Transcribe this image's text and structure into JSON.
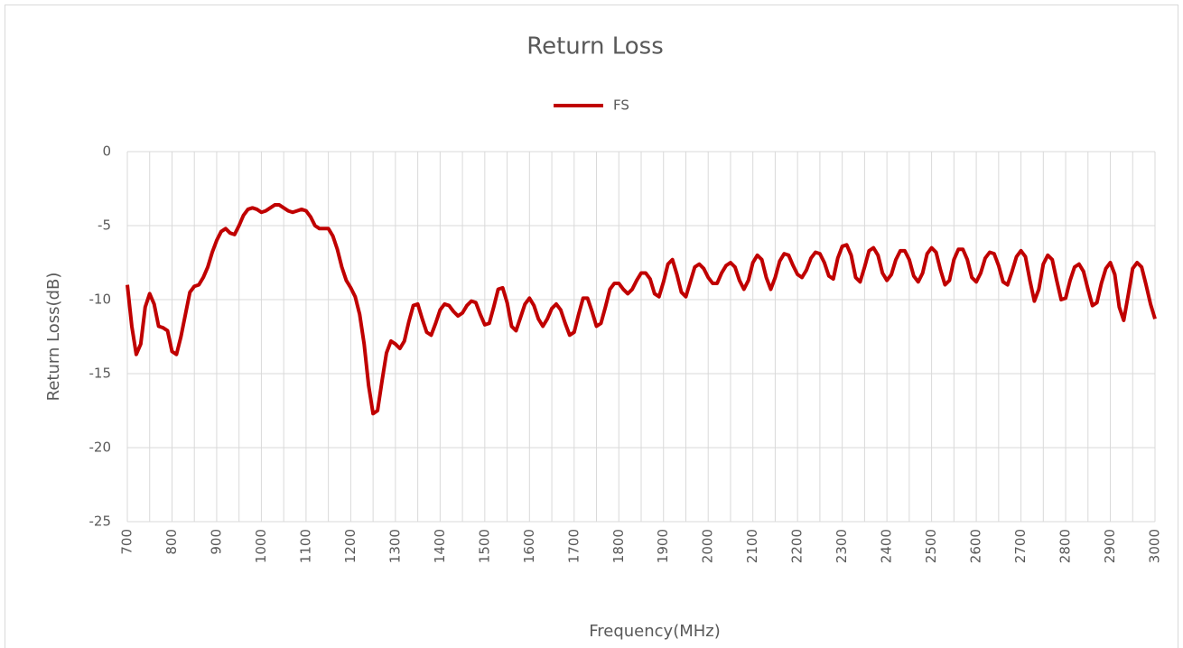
{
  "chart_data": {
    "type": "line",
    "title": "Return Loss",
    "xlabel": "Frequency(MHz)",
    "ylabel": "Return Loss(dB)",
    "x": [
      700,
      710,
      720,
      730,
      740,
      750,
      760,
      770,
      780,
      790,
      800,
      810,
      820,
      830,
      840,
      850,
      860,
      870,
      880,
      890,
      900,
      910,
      920,
      930,
      940,
      950,
      960,
      970,
      980,
      990,
      1000,
      1010,
      1020,
      1030,
      1040,
      1050,
      1060,
      1070,
      1080,
      1090,
      1100,
      1110,
      1120,
      1130,
      1140,
      1150,
      1160,
      1170,
      1180,
      1190,
      1200,
      1210,
      1220,
      1230,
      1240,
      1250,
      1260,
      1270,
      1280,
      1290,
      1300,
      1310,
      1320,
      1330,
      1340,
      1350,
      1360,
      1370,
      1380,
      1390,
      1400,
      1410,
      1420,
      1430,
      1440,
      1450,
      1460,
      1470,
      1480,
      1490,
      1500,
      1510,
      1520,
      1530,
      1540,
      1550,
      1560,
      1570,
      1580,
      1590,
      1600,
      1610,
      1620,
      1630,
      1640,
      1650,
      1660,
      1670,
      1680,
      1690,
      1700,
      1710,
      1720,
      1730,
      1740,
      1750,
      1760,
      1770,
      1780,
      1790,
      1800,
      1810,
      1820,
      1830,
      1840,
      1850,
      1860,
      1870,
      1880,
      1890,
      1900,
      1910,
      1920,
      1930,
      1940,
      1950,
      1960,
      1970,
      1980,
      1990,
      2000,
      2010,
      2020,
      2030,
      2040,
      2050,
      2060,
      2070,
      2080,
      2090,
      2100,
      2110,
      2120,
      2130,
      2140,
      2150,
      2160,
      2170,
      2180,
      2190,
      2200,
      2210,
      2220,
      2230,
      2240,
      2250,
      2260,
      2270,
      2280,
      2290,
      2300,
      2310,
      2320,
      2330,
      2340,
      2350,
      2360,
      2370,
      2380,
      2390,
      2400,
      2410,
      2420,
      2430,
      2440,
      2450,
      2460,
      2470,
      2480,
      2490,
      2500,
      2510,
      2520,
      2530,
      2540,
      2550,
      2560,
      2570,
      2580,
      2590,
      2600,
      2610,
      2620,
      2630,
      2640,
      2650,
      2660,
      2670,
      2680,
      2690,
      2700,
      2710,
      2720,
      2730,
      2740,
      2750,
      2760,
      2770,
      2780,
      2790,
      2800,
      2810,
      2820,
      2830,
      2840,
      2850,
      2860,
      2870,
      2880,
      2890,
      2900,
      2910,
      2920,
      2930,
      2940,
      2950,
      2960,
      2970,
      2980,
      2990,
      3000
    ],
    "series": [
      {
        "name": "FS",
        "color": "#c00000",
        "values": [
          -9,
          -11.8,
          -13.7,
          -13,
          -10.5,
          -9.6,
          -10.3,
          -11.8,
          -11.9,
          -12.1,
          -13.5,
          -13.7,
          -12.5,
          -11,
          -9.5,
          -9.1,
          -9,
          -8.5,
          -7.8,
          -6.8,
          -6,
          -5.4,
          -5.2,
          -5.5,
          -5.6,
          -5,
          -4.3,
          -3.9,
          -3.8,
          -3.9,
          -4.1,
          -4,
          -3.8,
          -3.6,
          -3.6,
          -3.8,
          -4,
          -4.1,
          -4,
          -3.9,
          -4,
          -4.4,
          -5,
          -5.2,
          -5.2,
          -5.2,
          -5.7,
          -6.6,
          -7.8,
          -8.7,
          -9.2,
          -9.8,
          -11,
          -13,
          -15.8,
          -17.7,
          -17.5,
          -15.5,
          -13.6,
          -12.8,
          -13,
          -13.3,
          -12.8,
          -11.5,
          -10.4,
          -10.3,
          -11.3,
          -12.2,
          -12.4,
          -11.6,
          -10.7,
          -10.3,
          -10.4,
          -10.8,
          -11.1,
          -10.9,
          -10.4,
          -10.1,
          -10.2,
          -11,
          -11.7,
          -11.6,
          -10.5,
          -9.3,
          -9.2,
          -10.2,
          -11.8,
          -12.1,
          -11.2,
          -10.3,
          -9.9,
          -10.4,
          -11.3,
          -11.8,
          -11.3,
          -10.6,
          -10.3,
          -10.7,
          -11.6,
          -12.4,
          -12.2,
          -11,
          -9.9,
          -9.9,
          -10.8,
          -11.8,
          -11.6,
          -10.5,
          -9.3,
          -8.9,
          -8.9,
          -9.3,
          -9.6,
          -9.3,
          -8.7,
          -8.2,
          -8.2,
          -8.6,
          -9.6,
          -9.8,
          -8.8,
          -7.6,
          -7.3,
          -8.3,
          -9.5,
          -9.8,
          -8.8,
          -7.8,
          -7.6,
          -7.9,
          -8.5,
          -8.9,
          -8.9,
          -8.2,
          -7.7,
          -7.5,
          -7.8,
          -8.7,
          -9.3,
          -8.7,
          -7.5,
          -7,
          -7.3,
          -8.5,
          -9.3,
          -8.5,
          -7.4,
          -6.9,
          -7,
          -7.7,
          -8.3,
          -8.5,
          -8,
          -7.2,
          -6.8,
          -6.9,
          -7.5,
          -8.4,
          -8.6,
          -7.2,
          -6.4,
          -6.3,
          -7,
          -8.5,
          -8.8,
          -7.8,
          -6.7,
          -6.5,
          -7,
          -8.2,
          -8.7,
          -8.3,
          -7.3,
          -6.7,
          -6.7,
          -7.3,
          -8.4,
          -8.8,
          -8.2,
          -6.9,
          -6.5,
          -6.8,
          -8,
          -9,
          -8.7,
          -7.3,
          -6.6,
          -6.6,
          -7.3,
          -8.5,
          -8.8,
          -8.2,
          -7.2,
          -6.8,
          -6.9,
          -7.7,
          -8.8,
          -9,
          -8.1,
          -7.1,
          -6.7,
          -7.1,
          -8.7,
          -10.1,
          -9.3,
          -7.6,
          -7,
          -7.3,
          -8.7,
          -10,
          -9.9,
          -8.7,
          -7.8,
          -7.6,
          -8.1,
          -9.3,
          -10.4,
          -10.2,
          -8.9,
          -7.9,
          -7.5,
          -8.3,
          -10.5,
          -11.4,
          -9.7,
          -7.9,
          -7.5,
          -7.8,
          -9,
          -10.3,
          -11.3
        ]
      }
    ],
    "xlim": [
      700,
      3000
    ],
    "xticks": [
      700,
      800,
      900,
      1000,
      1100,
      1200,
      1300,
      1400,
      1500,
      1600,
      1700,
      1800,
      1900,
      2000,
      2100,
      2200,
      2300,
      2400,
      2500,
      2600,
      2700,
      2800,
      2900,
      3000
    ],
    "xminorticks": [
      750,
      850,
      950,
      1050,
      1150,
      1250,
      1350,
      1450,
      1550,
      1650,
      1750,
      1850,
      1950,
      2050,
      2150,
      2250,
      2350,
      2450,
      2550,
      2650,
      2750,
      2850,
      2950
    ],
    "ylim": [
      -25,
      0
    ],
    "yticks": [
      0,
      -5,
      -10,
      -15,
      -20,
      -25
    ],
    "grid": true,
    "legend": "top"
  }
}
